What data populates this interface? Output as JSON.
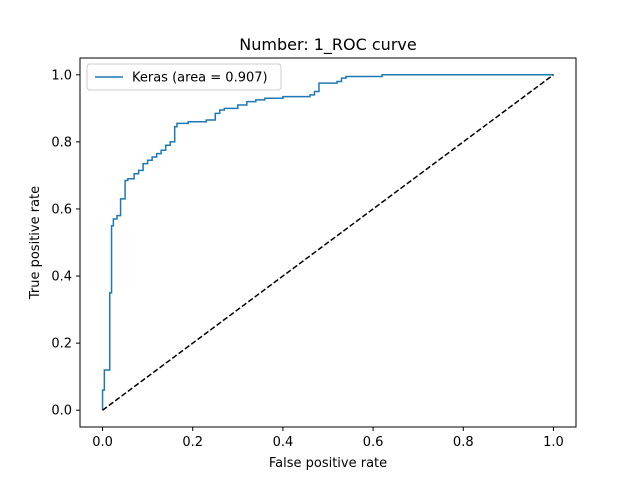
{
  "chart_data": {
    "type": "line",
    "title": "Number:  1_ROC curve",
    "xlabel": "False positive rate",
    "ylabel": "True positive rate",
    "xlim": [
      -0.05,
      1.05
    ],
    "ylim": [
      -0.05,
      1.05
    ],
    "xticks": [
      0.0,
      0.2,
      0.4,
      0.6,
      0.8,
      1.0
    ],
    "yticks": [
      0.0,
      0.2,
      0.4,
      0.6,
      0.8,
      1.0
    ],
    "xtick_labels": [
      "0.0",
      "0.2",
      "0.4",
      "0.6",
      "0.8",
      "1.0"
    ],
    "ytick_labels": [
      "0.0",
      "0.2",
      "0.4",
      "0.6",
      "0.8",
      "1.0"
    ],
    "grid": false,
    "legend_position": "top-left",
    "series": [
      {
        "name": "Keras (area = 0.907)",
        "color": "#1f77b4",
        "style": "step",
        "x": [
          0.0,
          0.0,
          0.004,
          0.004,
          0.016,
          0.016,
          0.02,
          0.02,
          0.024,
          0.024,
          0.032,
          0.032,
          0.04,
          0.04,
          0.05,
          0.05,
          0.056,
          0.056,
          0.07,
          0.07,
          0.08,
          0.08,
          0.09,
          0.09,
          0.1,
          0.1,
          0.11,
          0.11,
          0.12,
          0.12,
          0.13,
          0.13,
          0.14,
          0.14,
          0.15,
          0.15,
          0.16,
          0.16,
          0.165,
          0.165,
          0.19,
          0.19,
          0.23,
          0.23,
          0.25,
          0.25,
          0.26,
          0.26,
          0.27,
          0.27,
          0.3,
          0.3,
          0.32,
          0.32,
          0.34,
          0.34,
          0.36,
          0.36,
          0.4,
          0.4,
          0.46,
          0.46,
          0.47,
          0.47,
          0.48,
          0.48,
          0.52,
          0.52,
          0.53,
          0.53,
          0.54,
          0.54,
          0.62,
          0.62,
          1.0
        ],
        "y": [
          0.0,
          0.06,
          0.06,
          0.12,
          0.12,
          0.35,
          0.35,
          0.55,
          0.55,
          0.57,
          0.57,
          0.58,
          0.58,
          0.63,
          0.63,
          0.685,
          0.685,
          0.69,
          0.69,
          0.705,
          0.705,
          0.715,
          0.715,
          0.735,
          0.735,
          0.745,
          0.745,
          0.755,
          0.755,
          0.765,
          0.765,
          0.775,
          0.775,
          0.79,
          0.79,
          0.8,
          0.8,
          0.845,
          0.845,
          0.855,
          0.855,
          0.86,
          0.86,
          0.865,
          0.865,
          0.885,
          0.885,
          0.895,
          0.895,
          0.9,
          0.9,
          0.91,
          0.91,
          0.92,
          0.92,
          0.925,
          0.925,
          0.93,
          0.93,
          0.935,
          0.935,
          0.94,
          0.94,
          0.95,
          0.95,
          0.975,
          0.975,
          0.98,
          0.98,
          0.99,
          0.99,
          0.995,
          0.995,
          1.0,
          1.0
        ]
      },
      {
        "name": "",
        "color": "#000000",
        "style": "dashed",
        "x": [
          0.0,
          1.0
        ],
        "y": [
          0.0,
          1.0
        ]
      }
    ]
  }
}
